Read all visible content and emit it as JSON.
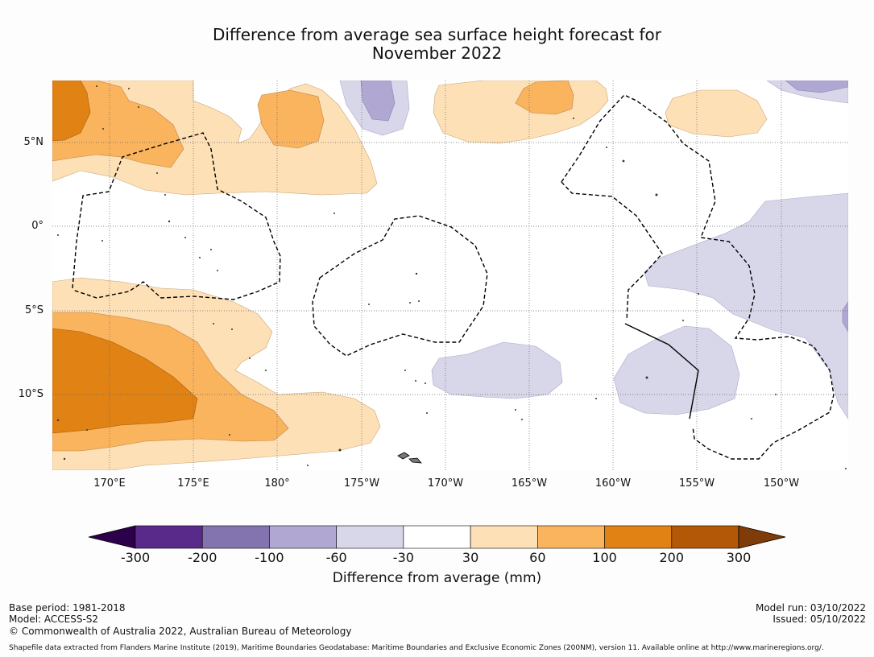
{
  "title_line1": "Difference from average sea surface height forecast for",
  "title_line2": "November 2022",
  "map": {
    "lon_range": [
      166.5,
      -146.5
    ],
    "lat_range": [
      -14.5,
      8.5
    ],
    "y_labels": [
      {
        "lat": 5,
        "text": "5°N"
      },
      {
        "lat": 0,
        "text": "0°"
      },
      {
        "lat": -5,
        "text": "5°S"
      },
      {
        "lat": -10,
        "text": "10°S"
      }
    ],
    "x_labels": [
      {
        "lon": 170,
        "text": "170°E"
      },
      {
        "lon": 175,
        "text": "175°E"
      },
      {
        "lon": 180,
        "text": "180°"
      },
      {
        "lon": 185,
        "text": "175°W"
      },
      {
        "lon": 190,
        "text": "170°W"
      },
      {
        "lon": 195,
        "text": "165°W"
      },
      {
        "lon": 200,
        "text": "160°W"
      },
      {
        "lon": 205,
        "text": "155°W"
      },
      {
        "lon": 210,
        "text": "150°W"
      }
    ]
  },
  "colorbar": {
    "title": "Difference from average (mm)",
    "labels": [
      "-300",
      "-200",
      "-100",
      "-60",
      "-30",
      "30",
      "60",
      "100",
      "200",
      "300"
    ],
    "colors": [
      "#5a2a8a",
      "#8373af",
      "#b0a8d2",
      "#d8d7ea",
      "#ffffff",
      "#fde0b6",
      "#fab45e",
      "#e08214",
      "#b35806"
    ],
    "extend_low_color": "#2d004b",
    "extend_high_color": "#7f3b08"
  },
  "footer": {
    "base_period": "Base period: 1981-2018",
    "model": "Model: ACCESS-S2",
    "copyright": "© Commonwealth of Australia 2022, Australian Bureau of Meteorology",
    "model_run": "Model run: 03/10/2022",
    "issued": "Issued: 05/10/2022",
    "shapefile_note": "Shapefile data extracted from Flanders Marine Institute (2019), Maritime Boundaries Geodatabase: Maritime Boundaries and Exclusive Economic Zones (200NM), version 11. Available online at http://www.marineregions.org/."
  }
}
